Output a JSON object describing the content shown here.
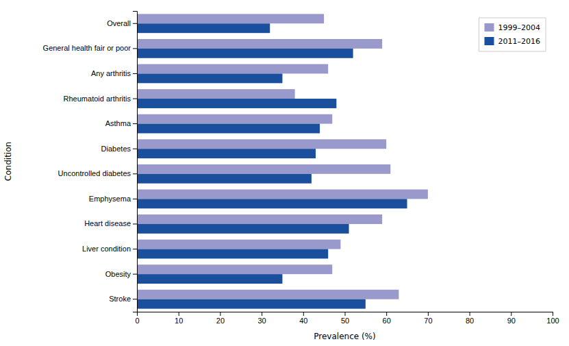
{
  "chart_data": {
    "type": "bar",
    "orientation": "horizontal",
    "xlabel": "Prevalence (%)",
    "ylabel": "Condition",
    "categories": [
      "Overall",
      "General health fair or poor",
      "Any arthritis",
      "Rheumatoid arthritis",
      "Asthma",
      "Diabetes",
      "Uncontrolled diabetes",
      "Emphysema",
      "Heart disease",
      "Liver condition",
      "Obesity",
      "Stroke"
    ],
    "series": [
      {
        "name": "1999–2004",
        "color": "#9999cc",
        "values": [
          45,
          59,
          46,
          38,
          47,
          60,
          61,
          70,
          59,
          49,
          47,
          63
        ]
      },
      {
        "name": "2011–2016",
        "color": "#1a4f9e",
        "values": [
          32,
          52,
          35,
          48,
          44,
          43,
          42,
          65,
          51,
          46,
          35,
          55
        ]
      }
    ],
    "xlim": [
      0,
      100
    ],
    "xticks": [
      0,
      10,
      20,
      30,
      40,
      50,
      60,
      70,
      80,
      90,
      100
    ],
    "legend": "upper right"
  }
}
